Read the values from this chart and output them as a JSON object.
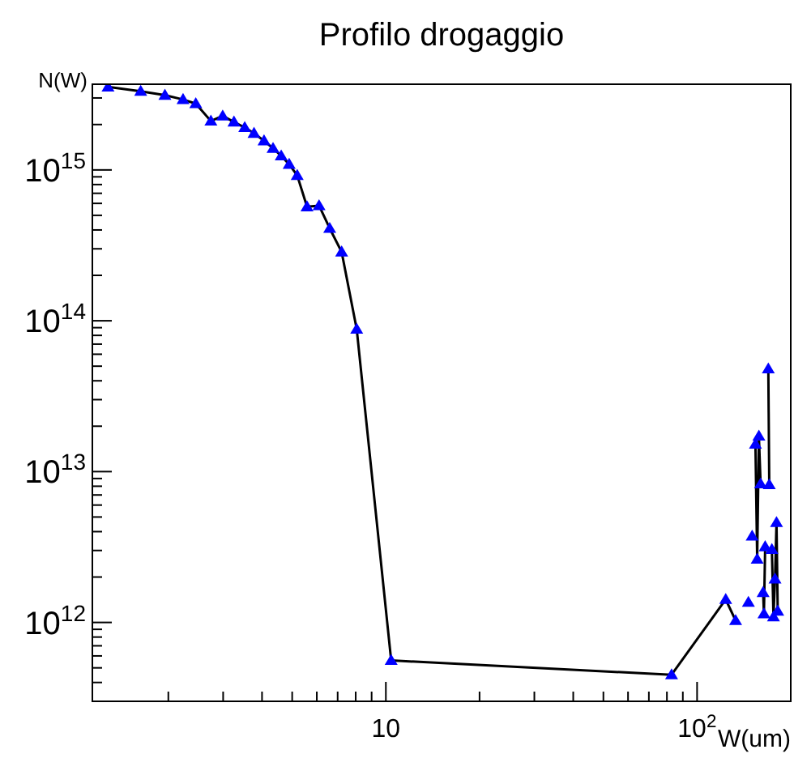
{
  "chart_data": {
    "type": "line",
    "title": "Profilo drogaggio",
    "xlabel": "W(um)",
    "ylabel": "N(W)",
    "log": "xy",
    "grid": false,
    "marker": "triangle",
    "line_style": "solid",
    "xlim": [
      1.14,
      200
    ],
    "ylim": [
      300000000000.0,
      3700000000000000.0
    ],
    "xticks": [
      {
        "value": 2,
        "label": null
      },
      {
        "value": 3,
        "label": null
      },
      {
        "value": 4,
        "label": null
      },
      {
        "value": 5,
        "label": null
      },
      {
        "value": 6,
        "label": null
      },
      {
        "value": 7,
        "label": null
      },
      {
        "value": 8,
        "label": null
      },
      {
        "value": 9,
        "label": null
      },
      10,
      {
        "value": 20,
        "label": null
      },
      {
        "value": 30,
        "label": null
      },
      {
        "value": 40,
        "label": null
      },
      {
        "value": 50,
        "label": null
      },
      {
        "value": 60,
        "label": null
      },
      {
        "value": 70,
        "label": null
      },
      {
        "value": 80,
        "label": null
      },
      {
        "value": 90,
        "label": null
      },
      {
        "value": 100,
        "label": "10$^{2}$"
      }
    ],
    "yticks": [
      {
        "value": 400000000000.0,
        "label": null
      },
      {
        "value": 500000000000.0,
        "label": null
      },
      {
        "value": 600000000000.0,
        "label": null
      },
      {
        "value": 700000000000.0,
        "label": null
      },
      {
        "value": 800000000000.0,
        "label": null
      },
      {
        "value": 900000000000.0,
        "label": null
      },
      {
        "value": 1000000000000.0,
        "label": "10$^{12}$"
      },
      {
        "value": 2000000000000.0,
        "label": null
      },
      {
        "value": 3000000000000.0,
        "label": null
      },
      {
        "value": 4000000000000.0,
        "label": null
      },
      {
        "value": 5000000000000.0,
        "label": null
      },
      {
        "value": 6000000000000.0,
        "label": null
      },
      {
        "value": 7000000000000.0,
        "label": null
      },
      {
        "value": 8000000000000.0,
        "label": null
      },
      {
        "value": 9000000000000.0,
        "label": null
      },
      {
        "value": 10000000000000.0,
        "label": "10$^{13}$"
      },
      {
        "value": 20000000000000.0,
        "label": null
      },
      {
        "value": 30000000000000.0,
        "label": null
      },
      {
        "value": 40000000000000.0,
        "label": null
      },
      {
        "value": 50000000000000.0,
        "label": null
      },
      {
        "value": 60000000000000.0,
        "label": null
      },
      {
        "value": 70000000000000.0,
        "label": null
      },
      {
        "value": 80000000000000.0,
        "label": null
      },
      {
        "value": 90000000000000.0,
        "label": null
      },
      {
        "value": 100000000000000.0,
        "label": "10$^{14}$"
      },
      {
        "value": 200000000000000.0,
        "label": null
      },
      {
        "value": 300000000000000.0,
        "label": null
      },
      {
        "value": 400000000000000.0,
        "label": null
      },
      {
        "value": 500000000000000.0,
        "label": null
      },
      {
        "value": 600000000000000.0,
        "label": null
      },
      {
        "value": 700000000000000.0,
        "label": null
      },
      {
        "value": 800000000000000.0,
        "label": null
      },
      {
        "value": 900000000000000.0,
        "label": null
      },
      {
        "value": 1000000000000000.0,
        "label": "10$^{15}$"
      },
      {
        "value": 2000000000000000.0,
        "label": null
      },
      {
        "value": 3000000000000000.0,
        "label": null
      }
    ],
    "x": [
      1.28,
      1.63,
      1.95,
      2.23,
      2.45,
      2.74,
      2.99,
      3.25,
      3.52,
      3.77,
      4.06,
      4.34,
      4.61,
      4.89,
      5.19,
      5.58,
      6.1,
      6.6,
      7.21,
      8.06,
      10.4,
      82.8,
      123.6,
      133,
      137.7,
      146.2,
      147.6,
      150.3,
      152,
      154,
      156,
      158,
      160,
      161.5,
      163,
      164,
      165.5,
      167,
      169.4,
      170.6,
      172,
      173.9,
      176,
      178,
      180,
      181.6
    ],
    "series": [
      {
        "color": "#0000ff",
        "values": [
          3550000000000000.0,
          3320000000000000.0,
          3130000000000000.0,
          2930000000000000.0,
          2750000000000000.0,
          2110000000000000.0,
          2280000000000000.0,
          2080000000000000.0,
          1910000000000000.0,
          1750000000000000.0,
          1560000000000000.0,
          1390000000000000.0,
          1240000000000000.0,
          1090000000000000.0,
          920000000000000.0,
          570000000000000.0,
          580000000000000.0,
          410000000000000.0,
          286000000000000.0,
          88000000000000.0,
          560000000000.0,
          450000000000.0,
          1420000000000.0,
          1030000000000.0,
          null,
          1360000000000.0,
          null,
          3740000000000.0,
          null,
          15200000000000.0,
          2630000000000.0,
          17200000000000.0,
          8300000000000.0,
          null,
          1580000000000.0,
          1140000000000.0,
          3180000000000.0,
          null,
          48000000000000.0,
          8200000000000.0,
          null,
          3050000000000.0,
          1090000000000.0,
          1940000000000.0,
          4600000000000.0,
          1190000000000.0
        ]
      }
    ]
  }
}
